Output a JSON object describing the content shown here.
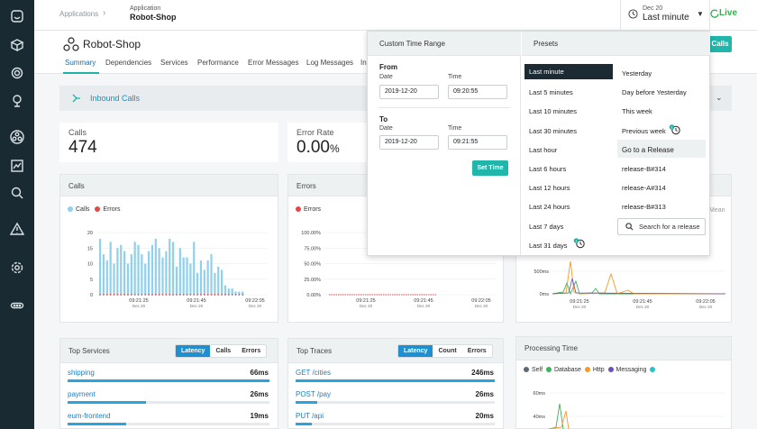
{
  "topbar": {
    "crumb_root": "Applications",
    "crumb_kind": "Application",
    "crumb_name": "Robot-Shop",
    "date": "Dec 20",
    "range": "Last minute",
    "live": "Live"
  },
  "header": {
    "title": "Robot-Shop",
    "tabs": [
      "Summary",
      "Dependencies",
      "Services",
      "Performance",
      "Error Messages",
      "Log Messages",
      "In"
    ],
    "calls_button": "Calls"
  },
  "inbound": {
    "label": "Inbound Calls"
  },
  "metrics": {
    "calls_label": "Calls",
    "calls_value": "474",
    "error_label": "Error Rate",
    "error_value": "0.00",
    "error_unit": "%"
  },
  "calls_chart": {
    "title": "Calls",
    "legend": [
      {
        "name": "Calls",
        "color": "#8fd0ec"
      },
      {
        "name": "Errors",
        "color": "#e54848"
      }
    ],
    "y_ticks": [
      "20",
      "15",
      "10",
      "5",
      "0"
    ],
    "x_ticks": [
      {
        "t": "09:21:25",
        "d": "Dec 20"
      },
      {
        "t": "09:21:45",
        "d": "Dec 20"
      },
      {
        "t": "09:22:05",
        "d": "Dec 20"
      }
    ]
  },
  "errors_chart": {
    "title": "Errors",
    "legend": [
      {
        "name": "Errors",
        "color": "#e54848"
      }
    ],
    "y_ticks": [
      "100.00%",
      "75.00%",
      "50.00%",
      "25.00%",
      "0.00%"
    ],
    "x_ticks": [
      {
        "t": "09:21:25",
        "d": "Dec 20"
      },
      {
        "t": "09:21:45",
        "d": "Dec 20"
      },
      {
        "t": "09:22:05",
        "d": "Dec 20"
      }
    ]
  },
  "latency_chart": {
    "legend_tail": "Mean",
    "y_ticks": [
      "500ms",
      "0ms"
    ],
    "x_ticks": [
      {
        "t": "09:21:25",
        "d": "Dec 20"
      },
      {
        "t": "09:21:45",
        "d": "Dec 20"
      },
      {
        "t": "09:22:05",
        "d": "Dec 20"
      }
    ]
  },
  "chart_data": [
    {
      "type": "bar",
      "title": "Calls",
      "ylim": [
        0,
        20
      ],
      "series": [
        {
          "name": "Calls",
          "values": [
            18,
            13,
            11,
            17,
            10,
            15,
            16,
            14,
            10,
            13,
            17,
            16,
            13,
            10,
            14,
            16,
            18,
            15,
            12,
            14,
            18,
            17,
            9,
            15,
            12,
            12,
            10,
            17,
            7,
            11,
            8,
            11,
            13,
            7,
            9,
            8,
            3,
            2,
            2,
            1,
            1,
            1
          ]
        },
        {
          "name": "Errors",
          "values": [
            0,
            0,
            0,
            0,
            0,
            0,
            0,
            0,
            0,
            0,
            0,
            0,
            0,
            0,
            0,
            0,
            0,
            0,
            0,
            0,
            0,
            0,
            0,
            0,
            0,
            0,
            0,
            0,
            0,
            0,
            0,
            0,
            0,
            0,
            0,
            0,
            0,
            0,
            0,
            0,
            0,
            0
          ]
        }
      ]
    },
    {
      "type": "line",
      "title": "Errors",
      "ylim": [
        0,
        100
      ],
      "series": [
        {
          "name": "Errors",
          "values": [
            0,
            0,
            0,
            0,
            0,
            0,
            0,
            0,
            0,
            0,
            0,
            0,
            0,
            0,
            0,
            0,
            0,
            0,
            0,
            0
          ]
        }
      ]
    }
  ],
  "top_services": {
    "title": "Top Services",
    "segments": [
      "Latency",
      "Calls",
      "Errors"
    ],
    "rows": [
      {
        "name": "shipping",
        "value": "66ms",
        "fill": 1.0
      },
      {
        "name": "payment",
        "value": "26ms",
        "fill": 0.39
      },
      {
        "name": "eum-frontend",
        "value": "19ms",
        "fill": 0.29
      }
    ]
  },
  "top_traces": {
    "title": "Top Traces",
    "segments": [
      "Latency",
      "Count",
      "Errors"
    ],
    "rows": [
      {
        "name": "GET /cities",
        "value": "246ms",
        "fill": 1.0
      },
      {
        "name": "POST /pay",
        "value": "26ms",
        "fill": 0.11
      },
      {
        "name": "PUT /api",
        "value": "20ms",
        "fill": 0.08
      }
    ]
  },
  "processing_time": {
    "title": "Processing Time",
    "legend": [
      {
        "name": "Self",
        "color": "#5a6a73"
      },
      {
        "name": "Database",
        "color": "#3fb35b"
      },
      {
        "name": "Http",
        "color": "#f29a2e"
      },
      {
        "name": "Messaging",
        "color": "#6b4fb8"
      },
      {
        "name": "",
        "color": "#26c1c9"
      }
    ],
    "y_ticks": [
      "60ms",
      "40ms"
    ]
  },
  "time_popup": {
    "custom_title": "Custom Time Range",
    "from_label": "From",
    "to_label": "To",
    "date_label": "Date",
    "time_label": "Time",
    "from_date": "2019-12-20",
    "from_time": "09:20:55",
    "to_date": "2019-12-20",
    "to_time": "09:21:55",
    "set_time": "Set Time",
    "presets_title": "Presets",
    "presets_left": [
      "Last minute",
      "Last 5 minutes",
      "Last 10 minutes",
      "Last 30 minutes",
      "Last hour",
      "Last 6 hours",
      "Last 12 hours",
      "Last 24 hours",
      "Last 7 days",
      "Last 31 days"
    ],
    "presets_right": [
      "Yesterday",
      "Day before Yesterday",
      "This week",
      "Previous week",
      "Go to a Release",
      "release-B#314",
      "release-A#314",
      "release-B#313"
    ],
    "search_release": "Search for a release",
    "badge": "1"
  }
}
